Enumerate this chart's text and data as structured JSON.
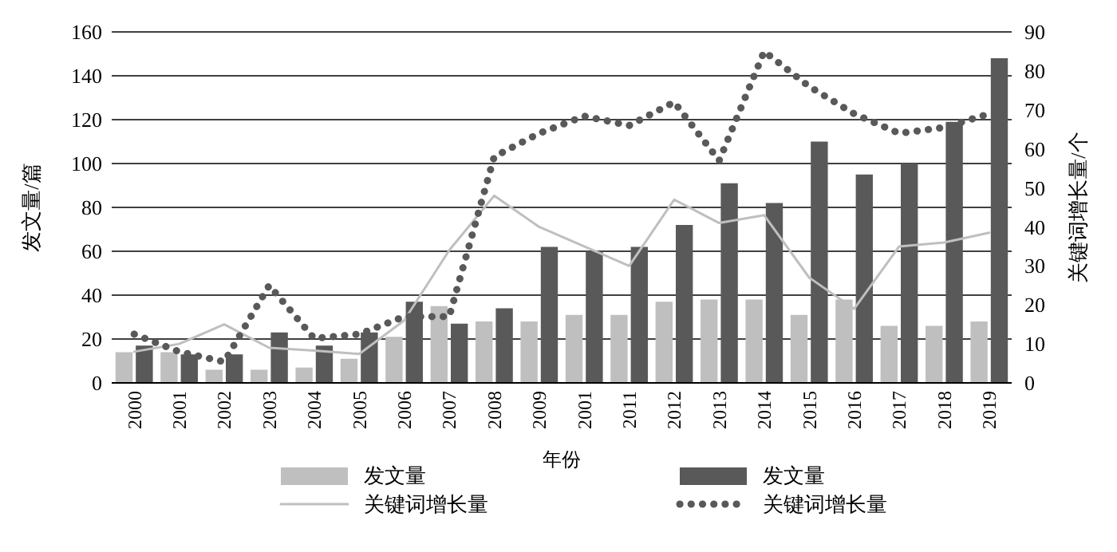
{
  "chart_data": {
    "type": "bar",
    "xlabel": "年份",
    "ylabel": "发文量/篇",
    "y2label": "关键词增长量/个",
    "categories": [
      "2000",
      "2001",
      "2002",
      "2003",
      "2004",
      "2005",
      "2006",
      "2007",
      "2008",
      "2009",
      "2001",
      "2011",
      "2012",
      "2013",
      "2014",
      "2015",
      "2016",
      "2017",
      "2018",
      "2019"
    ],
    "series": [
      {
        "name": "发文量",
        "color": "#bfbfbf",
        "values": [
          14,
          14,
          6,
          6,
          7,
          11,
          21,
          35,
          28,
          28,
          31,
          31,
          37,
          38,
          38,
          31,
          38,
          26,
          26,
          28
        ]
      },
      {
        "name": "发文量",
        "color": "#595959",
        "values": [
          17,
          13,
          13,
          23,
          17,
          23,
          37,
          27,
          34,
          62,
          60,
          62,
          72,
          91,
          82,
          110,
          95,
          100,
          119,
          148
        ]
      },
      {
        "name": "关键词增长量",
        "type": "line",
        "axis": "y2",
        "color": "#bfbfbf",
        "line_style": "solid",
        "values": [
          8,
          10,
          15,
          9,
          8.3,
          7.4,
          16,
          34,
          48,
          40,
          35,
          30,
          47,
          41,
          43,
          27,
          19,
          35,
          36,
          38.5
        ]
      },
      {
        "name": "关键词增长量",
        "type": "line",
        "axis": "y2",
        "color": "#595959",
        "line_style": "dotted",
        "values": [
          12.5,
          8,
          5.4,
          25,
          11.4,
          12.5,
          17,
          17,
          58,
          64,
          68.4,
          66,
          72,
          57,
          85,
          76,
          69,
          64,
          65.5,
          69
        ]
      }
    ],
    "ylim": [
      0,
      160
    ],
    "yticks": [
      0,
      20,
      40,
      60,
      80,
      100,
      120,
      140,
      160
    ],
    "y2lim": [
      0,
      90
    ],
    "y2ticks": [
      0,
      10,
      20,
      30,
      40,
      50,
      60,
      70,
      80,
      90
    ],
    "grid": "y",
    "legend": "bottom",
    "marker": "none"
  }
}
